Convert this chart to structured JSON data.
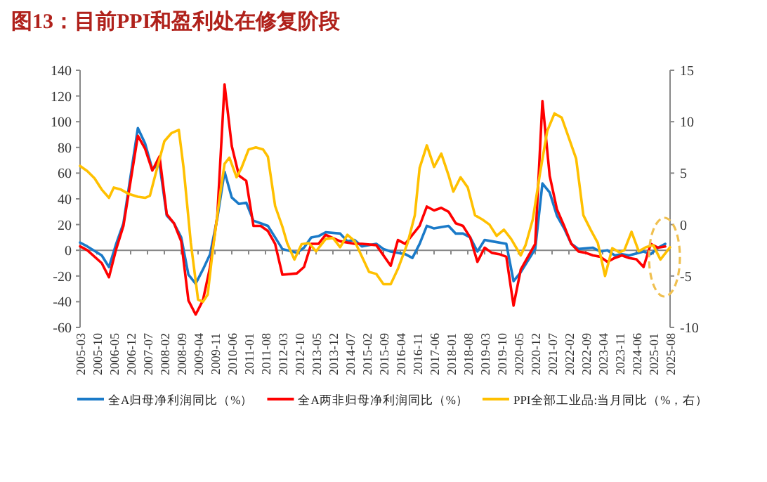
{
  "chart_data": {
    "type": "line",
    "title": "图13：目前PPI和盈利处在修复阶段",
    "xlim": [
      "2005-03",
      "2025-08"
    ],
    "xticks": [
      "2005-03",
      "2005-10",
      "2006-05",
      "2006-12",
      "2007-07",
      "2008-02",
      "2008-09",
      "2009-04",
      "2009-11",
      "2010-06",
      "2011-01",
      "2011-08",
      "2012-03",
      "2012-10",
      "2013-05",
      "2013-12",
      "2014-07",
      "2015-02",
      "2015-09",
      "2016-04",
      "2016-11",
      "2017-06",
      "2018-01",
      "2018-08",
      "2019-03",
      "2019-10",
      "2020-05",
      "2020-12",
      "2021-07",
      "2022-02",
      "2022-09",
      "2023-04",
      "2023-11",
      "2024-06",
      "2025-01",
      "2025-08"
    ],
    "ylim": [
      -60,
      140
    ],
    "yticks": [
      -60,
      -40,
      -20,
      0,
      20,
      40,
      60,
      80,
      100,
      120,
      140
    ],
    "y2lim": [
      -10,
      15
    ],
    "y2ticks": [
      -10,
      -5,
      0,
      5,
      10,
      15
    ],
    "legend": "bottom",
    "ref_lines": [
      {
        "axis": "y",
        "value": 0
      }
    ],
    "marker": "none",
    "line_style": "solid",
    "series": [
      {
        "name": "全A归母净利润同比（%）",
        "color": "#1a7ac8",
        "x": [
          "2005-03",
          "2005-06",
          "2005-12",
          "2006-03",
          "2006-06",
          "2006-09",
          "2007-03",
          "2007-06",
          "2007-09",
          "2007-12",
          "2008-03",
          "2008-06",
          "2008-09",
          "2008-12",
          "2009-03",
          "2009-06",
          "2009-09",
          "2009-12",
          "2010-03",
          "2010-06",
          "2010-09",
          "2010-12",
          "2011-03",
          "2011-06",
          "2011-09",
          "2011-12",
          "2012-03",
          "2012-09",
          "2012-12",
          "2013-03",
          "2013-06",
          "2013-09",
          "2014-03",
          "2014-06",
          "2014-09",
          "2014-12",
          "2015-06",
          "2015-09",
          "2015-12",
          "2016-06",
          "2016-09",
          "2016-12",
          "2017-03",
          "2017-06",
          "2017-12",
          "2018-03",
          "2018-06",
          "2018-09",
          "2018-12",
          "2019-03",
          "2019-06",
          "2019-12",
          "2020-03",
          "2020-06",
          "2020-12",
          "2021-03",
          "2021-06",
          "2021-09",
          "2021-12",
          "2022-03",
          "2022-06",
          "2022-12",
          "2023-03",
          "2023-06",
          "2023-09",
          "2023-12",
          "2024-03",
          "2024-09",
          "2024-12",
          "2025-03",
          "2025-06"
        ],
        "values": [
          6,
          3,
          -4,
          -13,
          5,
          21,
          95,
          83,
          63,
          67,
          27,
          21,
          10,
          -19,
          -26,
          -15,
          -3,
          25,
          61,
          41,
          36,
          37,
          23,
          21,
          19,
          10,
          1,
          -2,
          2,
          10,
          11,
          14,
          13,
          7,
          8,
          3,
          5,
          1,
          -1,
          -3,
          -6,
          5,
          19,
          17,
          19,
          13,
          13,
          10,
          -1,
          8,
          7,
          5,
          -24,
          -17,
          1,
          52,
          45,
          27,
          17,
          5,
          1,
          2,
          -1,
          0,
          -4,
          -3,
          -4,
          -1,
          -3,
          2,
          5
        ]
      },
      {
        "name": "全A两非归母净利润同比（%）",
        "color": "#ff0000",
        "x": [
          "2005-03",
          "2005-06",
          "2005-12",
          "2006-03",
          "2006-06",
          "2006-09",
          "2007-03",
          "2007-06",
          "2007-09",
          "2007-12",
          "2008-03",
          "2008-06",
          "2008-09",
          "2008-12",
          "2009-03",
          "2009-06",
          "2009-09",
          "2009-12",
          "2010-03",
          "2010-06",
          "2010-09",
          "2010-12",
          "2011-03",
          "2011-06",
          "2011-09",
          "2011-12",
          "2012-03",
          "2012-09",
          "2012-12",
          "2013-03",
          "2013-06",
          "2013-09",
          "2014-03",
          "2014-09",
          "2014-12",
          "2015-06",
          "2015-12",
          "2016-03",
          "2016-06",
          "2016-12",
          "2017-03",
          "2017-06",
          "2017-09",
          "2017-12",
          "2018-03",
          "2018-06",
          "2018-09",
          "2018-12",
          "2019-03",
          "2019-06",
          "2019-09",
          "2019-12",
          "2020-03",
          "2020-06",
          "2020-12",
          "2021-03",
          "2021-06",
          "2021-09",
          "2021-12",
          "2022-03",
          "2022-06",
          "2022-09",
          "2022-12",
          "2023-03",
          "2023-06",
          "2023-09",
          "2023-12",
          "2024-03",
          "2024-06",
          "2024-09",
          "2024-12",
          "2025-03",
          "2025-06"
        ],
        "values": [
          3,
          0,
          -10,
          -21,
          1,
          19,
          89,
          79,
          62,
          73,
          28,
          21,
          7,
          -39,
          -50,
          -39,
          -13,
          27,
          129,
          81,
          58,
          54,
          19,
          19,
          15,
          5,
          -19,
          -18,
          -13,
          5,
          5,
          12,
          7,
          5,
          5,
          4,
          -12,
          8,
          5,
          19,
          34,
          31,
          33,
          30,
          21,
          19,
          10,
          -9,
          2,
          -2,
          -3,
          -5,
          -43,
          -15,
          5,
          116,
          58,
          32,
          19,
          5,
          -1,
          -2,
          -4,
          -5,
          -9,
          -6,
          -4,
          -6,
          -7,
          -13,
          5,
          2,
          3
        ]
      },
      {
        "name": "PPI全部工业品:当月同比（%，右）",
        "color": "#ffc000",
        "axis": "y2",
        "x": [
          "2005-03",
          "2005-06",
          "2005-09",
          "2005-12",
          "2006-03",
          "2006-05",
          "2006-08",
          "2006-11",
          "2007-03",
          "2007-06",
          "2007-08",
          "2007-11",
          "2008-02",
          "2008-05",
          "2008-08",
          "2008-10",
          "2009-01",
          "2009-04",
          "2009-06",
          "2009-08",
          "2009-10",
          "2010-01",
          "2010-03",
          "2010-05",
          "2010-08",
          "2010-10",
          "2011-01",
          "2011-04",
          "2011-07",
          "2011-09",
          "2011-12",
          "2012-03",
          "2012-05",
          "2012-08",
          "2012-11",
          "2013-02",
          "2013-05",
          "2013-09",
          "2013-12",
          "2014-03",
          "2014-06",
          "2014-09",
          "2015-01",
          "2015-03",
          "2015-06",
          "2015-09",
          "2015-12",
          "2016-03",
          "2016-07",
          "2016-10",
          "2016-12",
          "2017-03",
          "2017-06",
          "2017-09",
          "2017-12",
          "2018-02",
          "2018-05",
          "2018-08",
          "2018-11",
          "2019-02",
          "2019-05",
          "2019-08",
          "2019-11",
          "2020-02",
          "2020-06",
          "2020-08",
          "2020-11",
          "2021-02",
          "2021-05",
          "2021-08",
          "2021-11",
          "2022-02",
          "2022-05",
          "2022-08",
          "2022-11",
          "2023-02",
          "2023-05",
          "2023-08",
          "2023-11",
          "2024-01",
          "2024-04",
          "2024-07",
          "2024-10",
          "2025-01",
          "2025-04",
          "2025-08"
        ],
        "values": [
          5.7,
          5.2,
          4.5,
          3.4,
          2.6,
          3.6,
          3.4,
          3.0,
          2.7,
          2.6,
          2.8,
          5.5,
          8.1,
          8.9,
          9.2,
          5.5,
          -1.8,
          -7.3,
          -7.5,
          -6.8,
          -2.7,
          2.7,
          5.9,
          6.5,
          4.6,
          5.5,
          7.3,
          7.5,
          7.3,
          6.6,
          1.8,
          -0.2,
          -1.8,
          -3.4,
          -1.9,
          -1.8,
          -2.6,
          -1.4,
          -1.3,
          -2.2,
          -1.0,
          -1.6,
          -3.6,
          -4.6,
          -4.8,
          -5.8,
          -5.8,
          -4.3,
          -1.8,
          0.9,
          5.5,
          7.7,
          5.6,
          6.9,
          4.8,
          3.2,
          4.6,
          3.6,
          0.9,
          0.5,
          0,
          -1.1,
          -0.5,
          -1.4,
          -3.0,
          -2.0,
          0.5,
          5.0,
          9.1,
          10.8,
          10.4,
          8.4,
          6.4,
          0.9,
          -0.5,
          -1.8,
          -5.0,
          -2.3,
          -2.7,
          -2.5,
          -0.7,
          -2.6,
          -2.2,
          -2.0,
          -3.4,
          -2.2
        ]
      }
    ]
  }
}
